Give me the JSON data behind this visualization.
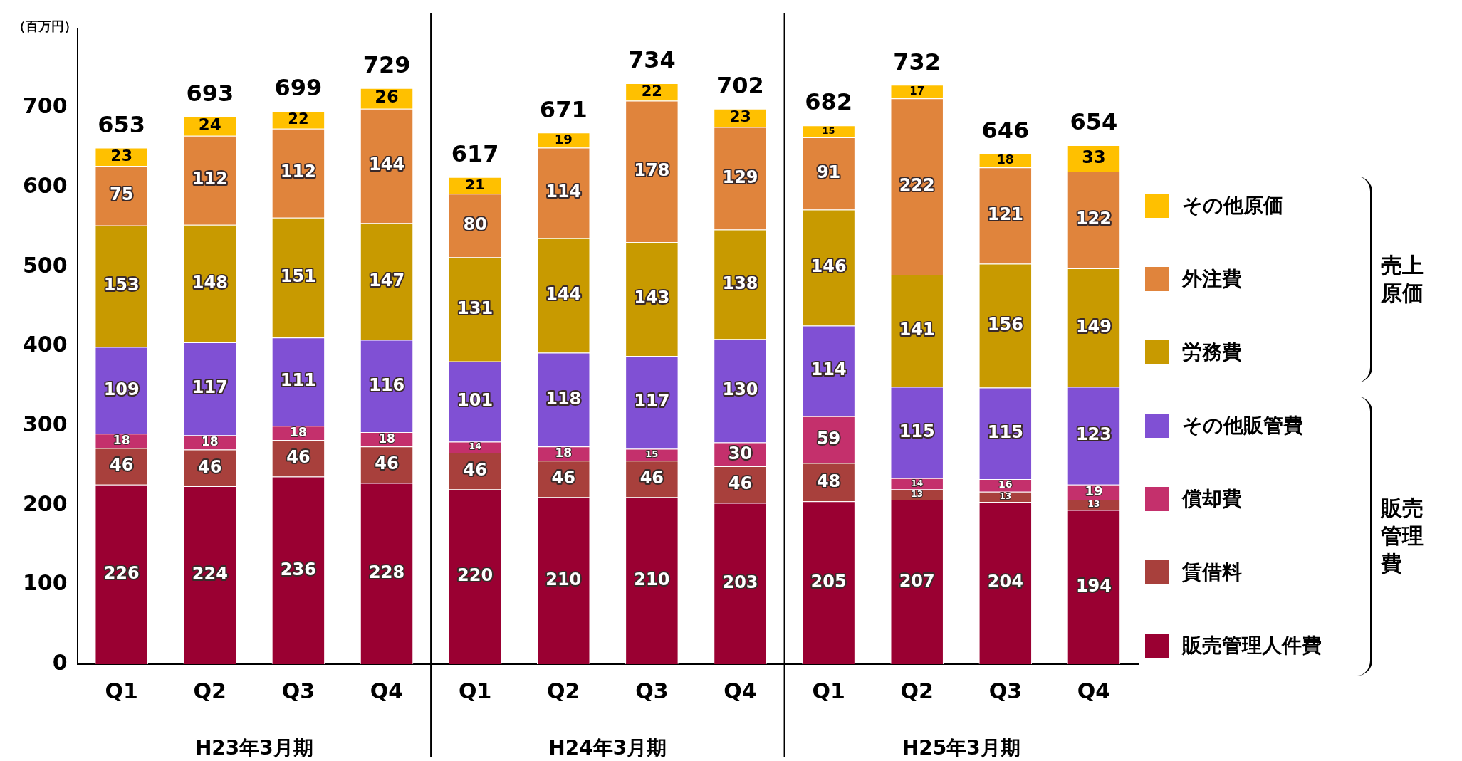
{
  "chart_data": {
    "type": "bar",
    "stacked": true,
    "ylabel": "（百万円）",
    "categories": [
      "Q1",
      "Q2",
      "Q3",
      "Q4",
      "Q1",
      "Q2",
      "Q3",
      "Q4",
      "Q1",
      "Q2",
      "Q3",
      "Q4"
    ],
    "series": [
      {
        "name": "販売管理人件費",
        "color": "#9a0032",
        "values": [
          226,
          224,
          236,
          228,
          220,
          210,
          210,
          203,
          205,
          207,
          204,
          194
        ]
      },
      {
        "name": "賃借料",
        "color": "#a8403c",
        "values": [
          46,
          46,
          46,
          46,
          46,
          46,
          46,
          46,
          48,
          13,
          13,
          13
        ]
      },
      {
        "name": "償却費",
        "color": "#c4306c",
        "values": [
          18,
          18,
          18,
          18,
          14,
          18,
          15,
          30,
          59,
          14,
          16,
          19
        ]
      },
      {
        "name": "その他販管費",
        "color": "#8050d4",
        "values": [
          109,
          117,
          111,
          116,
          101,
          118,
          117,
          130,
          114,
          115,
          115,
          123
        ]
      },
      {
        "name": "労務費",
        "color": "#c89a00",
        "values": [
          153,
          148,
          151,
          147,
          131,
          144,
          143,
          138,
          146,
          141,
          156,
          149
        ]
      },
      {
        "name": "外注費",
        "color": "#e0843c",
        "values": [
          75,
          112,
          112,
          144,
          80,
          114,
          178,
          129,
          91,
          222,
          121,
          122
        ]
      },
      {
        "name": "その他原価",
        "color": "#ffc000",
        "values": [
          23,
          24,
          22,
          26,
          21,
          19,
          22,
          23,
          15,
          17,
          18,
          33
        ]
      }
    ],
    "data_labels": true,
    "totals": [
      "653",
      "693",
      "699",
      "729",
      "617",
      "671",
      "734",
      "702",
      "682",
      "732",
      "646",
      "654"
    ],
    "ylim": [
      0,
      800
    ],
    "yticks": [
      0,
      100,
      200,
      300,
      400,
      500,
      600,
      700
    ],
    "grid": false,
    "legend": "right",
    "annotations": [
      "H23年3月期",
      "H24年3月期",
      "H25年3月期",
      "売上原価",
      "販売管理費"
    ]
  }
}
